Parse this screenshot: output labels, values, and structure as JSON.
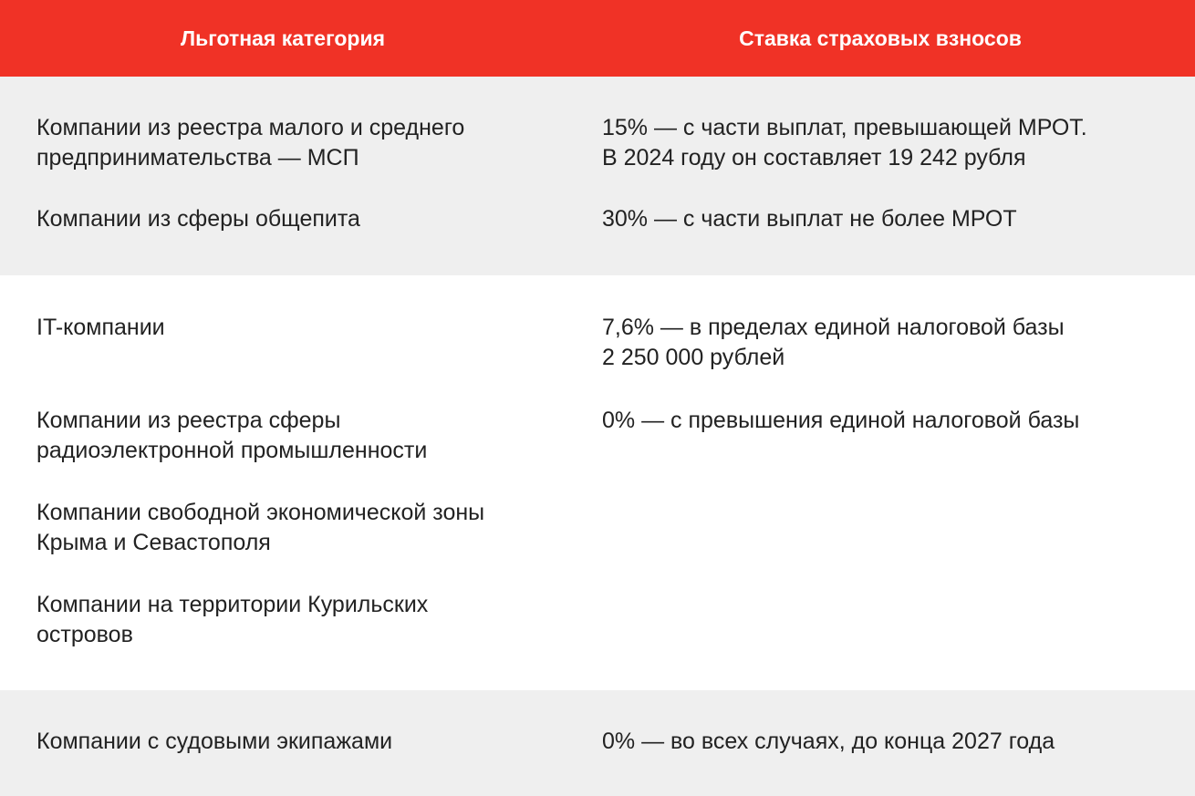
{
  "header": {
    "col1": "Льготная категория",
    "col2": "Ставка страховых взносов"
  },
  "colors": {
    "header_bg": "#f03226",
    "header_text": "#ffffff",
    "band_gray": "#efefef",
    "band_white": "#ffffff",
    "text": "#222222"
  },
  "groups": [
    {
      "categories": [
        [
          "Компании из реестра малого и среднего",
          "предпринимательства — МСП"
        ],
        [
          "Компании из сферы общепита"
        ]
      ],
      "rates": [
        [
          "15% — с части выплат, превышающей МРОТ.",
          "В 2024 году он составляет 19 242 рубля"
        ],
        [
          "30% — с части выплат не более МРОТ"
        ]
      ]
    },
    {
      "categories": [
        [
          "IT-компании"
        ],
        [
          "Компании из реестра сферы",
          "радиоэлектронной промышленности"
        ],
        [
          "Компании свободной экономической зоны",
          "Крыма и Севастополя"
        ],
        [
          "Компании на территории Курильских",
          "островов"
        ]
      ],
      "rates": [
        [
          "7,6% — в пределах единой налоговой базы",
          "2 250 000 рублей"
        ],
        [
          "0% — с превышения единой налоговой базы"
        ]
      ]
    },
    {
      "categories": [
        [
          "Компании с судовыми экипажами"
        ]
      ],
      "rates": [
        [
          "0% — во всех случаях, до конца 2027 года"
        ]
      ]
    }
  ]
}
